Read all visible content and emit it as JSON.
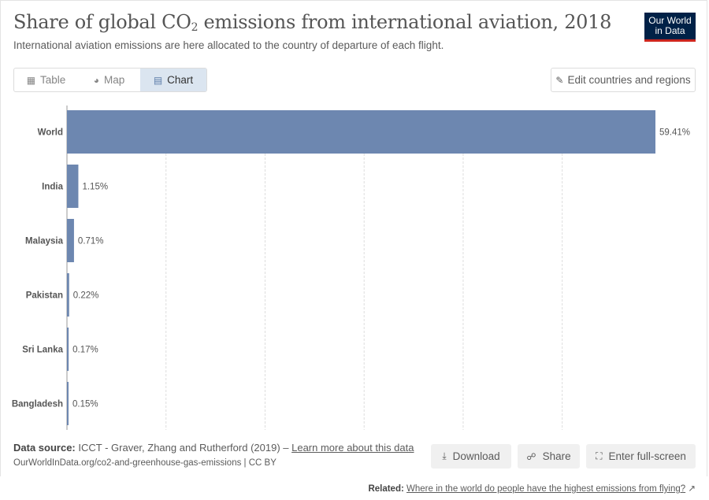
{
  "header": {
    "title_main": "Share of global CO",
    "title_sub": "2",
    "title_rest": " emissions from international aviation, 2018",
    "subtitle": "International aviation emissions are here allocated to the country of departure of each flight."
  },
  "logo": {
    "line1": "Our World",
    "line2": "in Data"
  },
  "tabs": [
    {
      "label": "Table",
      "icon": "table-icon"
    },
    {
      "label": "Map",
      "icon": "globe-icon"
    },
    {
      "label": "Chart",
      "icon": "chart-icon",
      "active": true
    }
  ],
  "edit_button": {
    "label": "Edit countries and regions",
    "icon": "pencil-icon"
  },
  "chart_data": {
    "type": "bar",
    "orientation": "horizontal",
    "categories": [
      "World",
      "India",
      "Malaysia",
      "Pakistan",
      "Sri Lanka",
      "Bangladesh"
    ],
    "values": [
      59.41,
      1.15,
      0.71,
      0.22,
      0.17,
      0.15
    ],
    "value_labels": [
      "59.41%",
      "1.15%",
      "0.71%",
      "0.22%",
      "0.17%",
      "0.15%"
    ],
    "xlim": [
      0,
      59.41
    ],
    "grid": true,
    "bar_color": "#6d87b0"
  },
  "footer": {
    "source_label": "Data source:",
    "source_text": "ICCT - Graver, Zhang and Rutherford (2019) –",
    "learn_more": "Learn more about this data",
    "url": "OurWorldInData.org/co2-and-greenhouse-gas-emissions | CC BY",
    "download": "Download",
    "share": "Share",
    "fullscreen": "Enter full-screen",
    "related_label": "Related:",
    "related_link": "Where in the world do people have the highest emissions from flying?"
  }
}
